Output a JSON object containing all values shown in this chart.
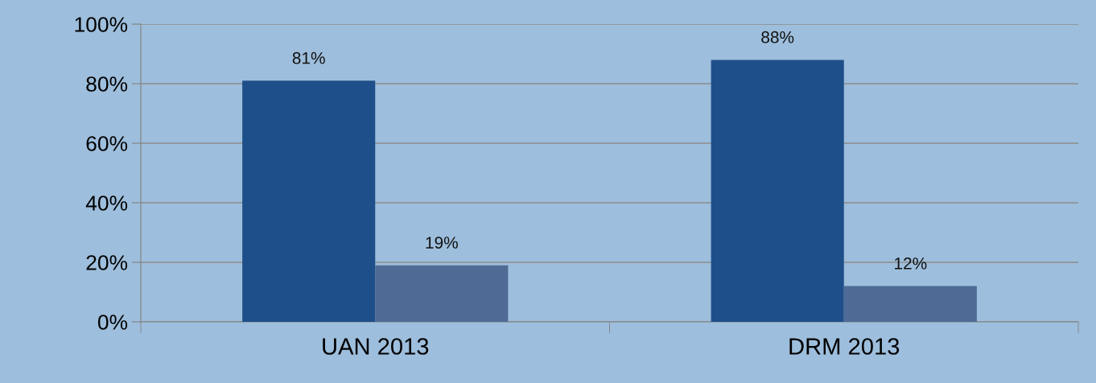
{
  "chart_data": {
    "type": "bar",
    "categories": [
      "UAN 2013",
      "DRM 2013"
    ],
    "series": [
      {
        "color": "#1f4f8a",
        "values": [
          81,
          88
        ],
        "value_labels": [
          "81%",
          "88%"
        ]
      },
      {
        "color": "#4f6a94",
        "values": [
          19,
          12
        ],
        "value_labels": [
          "19%",
          "12%"
        ]
      }
    ],
    "ylim": [
      0,
      100
    ],
    "yticks": [
      {
        "value": 0,
        "label": "0%"
      },
      {
        "value": 20,
        "label": "20%"
      },
      {
        "value": 40,
        "label": "40%"
      },
      {
        "value": 60,
        "label": "60%"
      },
      {
        "value": 80,
        "label": "80%"
      },
      {
        "value": 100,
        "label": "100%"
      }
    ],
    "grid": "y",
    "legend": false
  }
}
